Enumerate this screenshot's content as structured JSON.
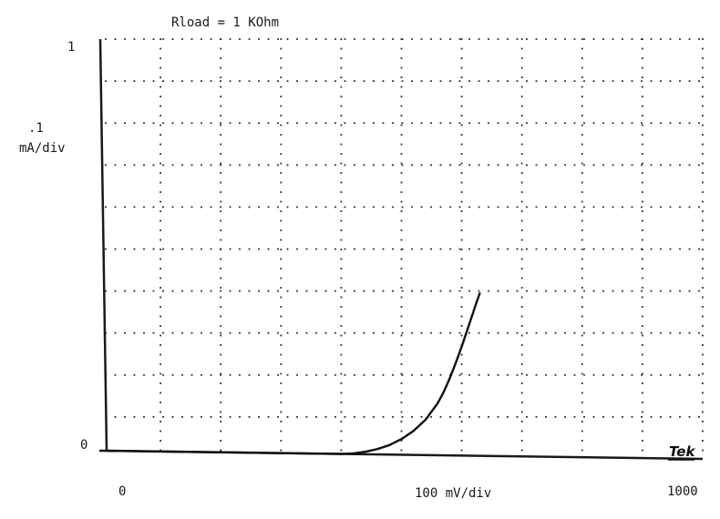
{
  "chart_data": {
    "type": "line",
    "title": "Rload = 1 KOhm",
    "y_top_label": "1",
    "y_scale_label_1": ".1",
    "y_scale_label_2": "mA/div",
    "y_zero_label": "0",
    "x_zero_label": "0",
    "x_scale_label": "100 mV/div",
    "x_end_label": "1000",
    "brand": "Tek",
    "xlim": [
      0,
      1000
    ],
    "ylim": [
      0,
      1
    ],
    "grid": true,
    "series": [
      {
        "x": [
          0,
          100,
          200,
          300,
          400,
          420,
          440,
          460,
          480,
          500,
          520,
          540,
          560,
          570,
          580,
          590,
          600,
          610,
          620,
          625,
          630
        ],
        "values": [
          0,
          0,
          0,
          0,
          0,
          0.002,
          0.006,
          0.013,
          0.023,
          0.038,
          0.058,
          0.085,
          0.125,
          0.152,
          0.185,
          0.222,
          0.262,
          0.305,
          0.348,
          0.37,
          0.39
        ]
      }
    ]
  }
}
